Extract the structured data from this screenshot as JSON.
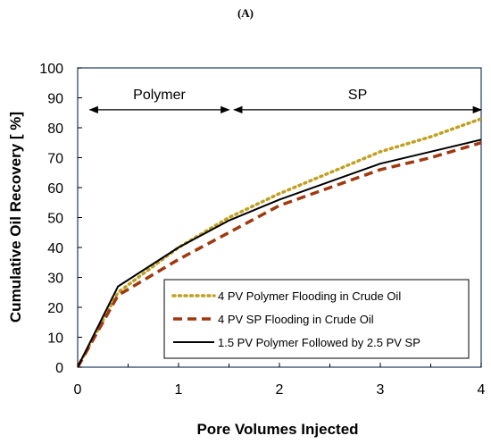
{
  "chart_data": {
    "type": "line",
    "panel_label": "(A)",
    "xlabel": "Pore Volumes Injected",
    "ylabel": "Cumulative Oil Recovery [ %]",
    "xlim": [
      0,
      4
    ],
    "ylim": [
      0,
      100
    ],
    "xticks": [
      0,
      1,
      2,
      3,
      4
    ],
    "yticks": [
      0,
      10,
      20,
      30,
      40,
      50,
      60,
      70,
      80,
      90,
      100
    ],
    "grid": false,
    "legend_position": "bottom-right",
    "annotations": [
      {
        "text": "Polymer",
        "x_range": [
          0.12,
          1.5
        ]
      },
      {
        "text": "SP",
        "x_range": [
          1.55,
          4.0
        ]
      }
    ],
    "series": [
      {
        "name": "4 PV Polymer Flooding in Crude Oil",
        "color": "#c0a020",
        "style": "dotted",
        "x": [
          0,
          0.4,
          1.0,
          1.5,
          2.0,
          2.5,
          3.0,
          3.5,
          4.0
        ],
        "y": [
          0,
          25,
          40,
          50,
          58,
          65,
          72,
          77,
          83
        ]
      },
      {
        "name": "4 PV SP Flooding in Crude Oil",
        "color": "#a0380f",
        "style": "dashed",
        "x": [
          0,
          0.4,
          1.0,
          1.5,
          2.0,
          2.5,
          3.0,
          3.5,
          4.0
        ],
        "y": [
          0,
          24,
          36,
          45,
          54,
          60,
          66,
          70,
          75
        ]
      },
      {
        "name": "1.5 PV Polymer Followed by 2.5 PV SP",
        "color": "#000000",
        "style": "solid",
        "x": [
          0,
          0.4,
          1.0,
          1.5,
          2.0,
          2.5,
          3.0,
          3.5,
          4.0
        ],
        "y": [
          0,
          27,
          40,
          49,
          56,
          62,
          68,
          72,
          76
        ]
      }
    ]
  }
}
